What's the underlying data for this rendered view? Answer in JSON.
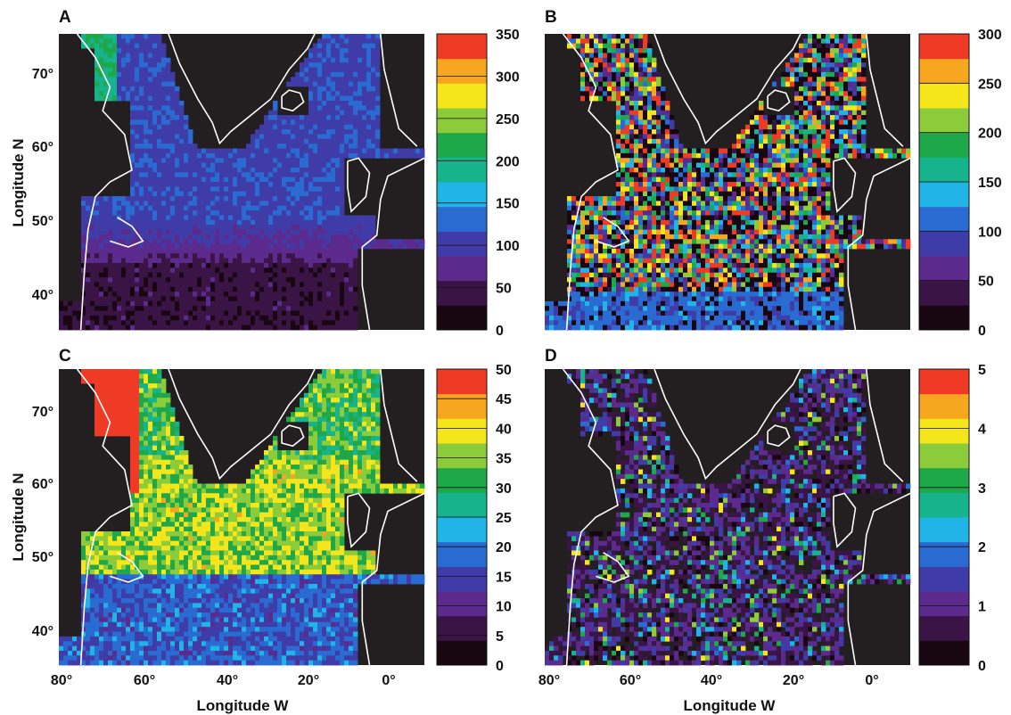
{
  "figure": {
    "xlabel": "Longitude W",
    "ylabel": "Longitude N"
  },
  "chart_data": [
    {
      "type": "heatmap",
      "panel_label": "A",
      "xlabel": "",
      "ylabel": "Longitude N",
      "y_ticks": [
        "70°",
        "60°",
        "50°",
        "40°"
      ],
      "x_ticks": [],
      "xlim": [
        80,
        -10
      ],
      "ylim": [
        35,
        75
      ],
      "colorbar": {
        "min": 0,
        "max": 350,
        "ticks": [
          "0",
          "50",
          "100",
          "150",
          "200",
          "250",
          "300",
          "350"
        ]
      },
      "field_model": "latitude gradient: ~30 near 40°N rising to ~120 across the subpolar gyre, ~170-200 along Greenland/Labrador coasts"
    },
    {
      "type": "heatmap",
      "panel_label": "B",
      "xlabel": "",
      "ylabel": "",
      "y_ticks": [],
      "x_ticks": [],
      "xlim": [
        80,
        -10
      ],
      "ylim": [
        35,
        75
      ],
      "colorbar": {
        "min": 0,
        "max": 300,
        "ticks": [
          "0",
          "50",
          "100",
          "150",
          "200",
          "250",
          "300"
        ]
      },
      "field_model": "noisy patchwork 0-300, high values (>250) common in mid-basin, ~100 in southern band"
    },
    {
      "type": "heatmap",
      "panel_label": "C",
      "xlabel": "Longitude W",
      "ylabel": "Longitude N",
      "y_ticks": [
        "70°",
        "60°",
        "50°",
        "40°"
      ],
      "x_ticks": [
        "80°",
        "60°",
        "40°",
        "20°",
        "0°"
      ],
      "xlim": [
        80,
        -10
      ],
      "ylim": [
        35,
        75
      ],
      "colorbar": {
        "min": 0,
        "max": 50,
        "ticks": [
          "0",
          "5",
          "10",
          "15",
          "20",
          "25",
          "30",
          "35",
          "40",
          "45",
          "50"
        ]
      },
      "field_model": "~15-18 south of 48°N, ~33-38 in subpolar gyre (50-62°N), >45 along Greenland/Labrador coasts"
    },
    {
      "type": "heatmap",
      "panel_label": "D",
      "xlabel": "Longitude W",
      "ylabel": "",
      "y_ticks": [],
      "x_ticks": [
        "80°",
        "60°",
        "40°",
        "20°",
        "0°"
      ],
      "xlim": [
        80,
        -10
      ],
      "ylim": [
        35,
        75
      ],
      "colorbar": {
        "min": 0,
        "max": 5,
        "ticks": [
          "0",
          "1",
          "2",
          "3",
          "4",
          "5"
        ]
      },
      "field_model": "mostly 0.5-1.5 with scattered 2-4 patches, >4 along some coasts, sparse coverage"
    }
  ],
  "colors": {
    "land": "#231f20",
    "coastline": "#ffffff",
    "colormap": [
      "#180610",
      "#3a1445",
      "#5b2a8c",
      "#3f3ca8",
      "#2a6bd1",
      "#20b5e6",
      "#16b38c",
      "#1fa84a",
      "#8ccc3a",
      "#f5e61c",
      "#f7a620",
      "#ef3a26"
    ]
  }
}
